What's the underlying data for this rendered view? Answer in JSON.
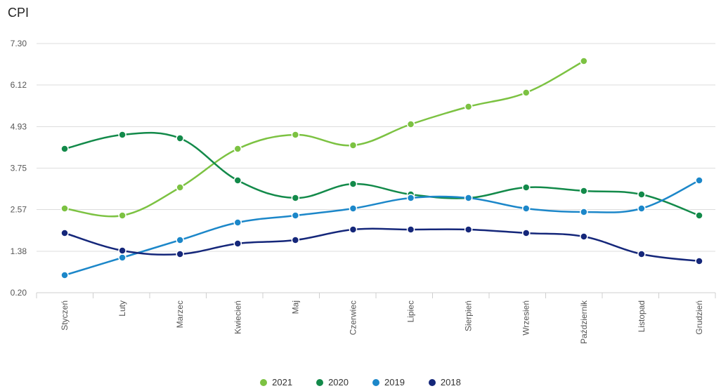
{
  "chart_data": {
    "type": "line",
    "title": "CPI",
    "xlabel": "",
    "ylabel": "",
    "ylim": [
      0.2,
      7.3
    ],
    "yticks": [
      "7.30",
      "6.12",
      "4.93",
      "3.75",
      "2.57",
      "1.38",
      "0.20"
    ],
    "yticks_values": [
      7.3,
      6.12,
      4.93,
      3.75,
      2.57,
      1.38,
      0.2
    ],
    "categories": [
      "Styczeń",
      "Luty",
      "Marzec",
      "Kwiecień",
      "Maj",
      "Czerwiec",
      "Lipiec",
      "Sierpień",
      "Wrzesień",
      "Październik",
      "Listopad",
      "Grudzień"
    ],
    "grid": true,
    "legend_position": "bottom",
    "series": [
      {
        "name": "2021",
        "color": "#7cc242",
        "values": [
          2.6,
          2.4,
          3.2,
          4.3,
          4.7,
          4.4,
          5.0,
          5.5,
          5.9,
          6.8,
          null,
          null
        ]
      },
      {
        "name": "2020",
        "color": "#138a4a",
        "values": [
          4.3,
          4.7,
          4.6,
          3.4,
          2.9,
          3.3,
          3.0,
          2.9,
          3.2,
          3.1,
          3.0,
          2.4
        ]
      },
      {
        "name": "2019",
        "color": "#1c87c9",
        "values": [
          0.7,
          1.2,
          1.7,
          2.2,
          2.4,
          2.6,
          2.9,
          2.9,
          2.6,
          2.5,
          2.6,
          3.4
        ]
      },
      {
        "name": "2018",
        "color": "#15277a",
        "values": [
          1.9,
          1.4,
          1.3,
          1.6,
          1.7,
          2.0,
          2.0,
          2.0,
          1.9,
          1.8,
          1.3,
          1.1
        ]
      }
    ]
  }
}
